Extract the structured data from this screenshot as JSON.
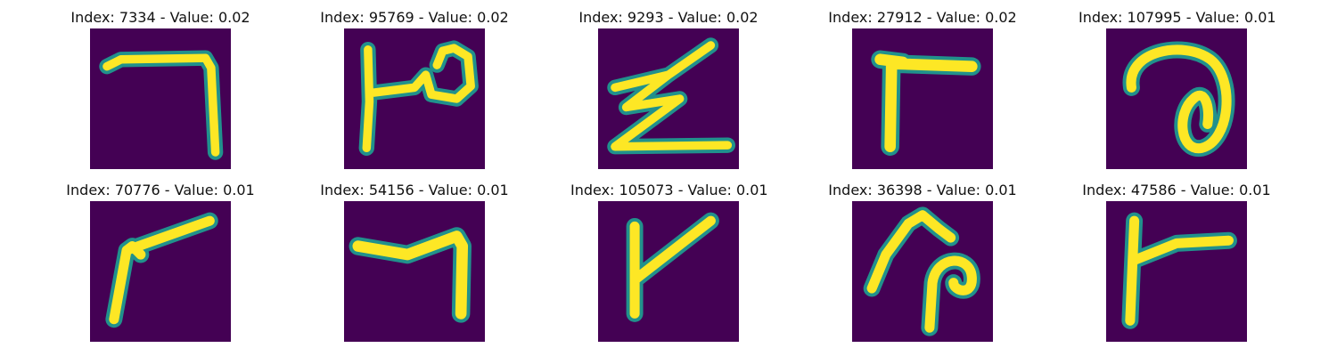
{
  "figure": {
    "panels": [
      {
        "title": "Index: 7334 - Value: 0.02",
        "glyph": "seven-shape"
      },
      {
        "title": "Index: 95769 - Value: 0.02",
        "glyph": "loop-on-stem"
      },
      {
        "title": "Index: 9293 - Value: 0.02",
        "glyph": "zigzag-z"
      },
      {
        "title": "Index: 27912 - Value: 0.02",
        "glyph": "gamma-shape"
      },
      {
        "title": "Index: 107995 - Value: 0.01",
        "glyph": "spiral-loop"
      },
      {
        "title": "Index: 70776 - Value: 0.01",
        "glyph": "angled-stroke"
      },
      {
        "title": "Index: 54156 - Value: 0.01",
        "glyph": "seven-shape"
      },
      {
        "title": "Index: 105073 - Value: 0.01",
        "glyph": "y-branch"
      },
      {
        "title": "Index: 36398 - Value: 0.01",
        "glyph": "hook-loop"
      },
      {
        "title": "Index: 47586 - Value: 0.01",
        "glyph": "t-branch"
      }
    ],
    "colors": {
      "background": "#440154",
      "stroke_core": "#fde725",
      "stroke_edge": "#21918c"
    }
  }
}
